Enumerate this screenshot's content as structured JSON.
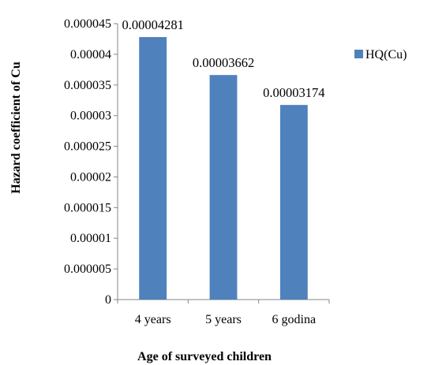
{
  "chart_data": {
    "type": "bar",
    "title": "",
    "xlabel": "Age of surveyed children",
    "ylabel": "Hazard coefficient of Cu",
    "categories": [
      "4 years",
      "5 years",
      "6 godina"
    ],
    "series": [
      {
        "name": "HQ(Cu)",
        "values": [
          4.281e-05,
          3.662e-05,
          3.174e-05
        ],
        "color": "#4F81BD"
      }
    ],
    "data_labels": [
      "0.00004281",
      "0.00003662",
      "0.00003174"
    ],
    "ylim": [
      0,
      4.5e-05
    ],
    "yticks": [
      0,
      5e-06,
      1e-05,
      1.5e-05,
      2e-05,
      2.5e-05,
      3e-05,
      3.5e-05,
      4e-05,
      4.5e-05
    ],
    "ytick_labels": [
      "0",
      "0.000005",
      "0.00001",
      "0.000015",
      "0.00002",
      "0.000025",
      "0.00003",
      "0.000035",
      "0.00004",
      "0.000045"
    ],
    "grid": false,
    "legend": {
      "position": "right",
      "entries": [
        "HQ(Cu)"
      ]
    }
  }
}
